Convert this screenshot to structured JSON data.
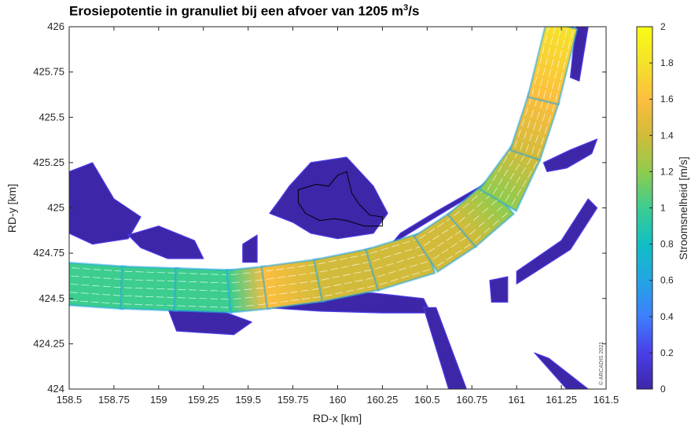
{
  "chart_data": {
    "type": "heatmap",
    "title": "Erosiepotentie in granuliet bij een afvoer van 1205 m",
    "title_sup": "3",
    "title_suffix": "/s",
    "xlabel": "RD-x [km]",
    "ylabel": "RD-y [km]",
    "xlim": [
      158.5,
      161.5
    ],
    "ylim": [
      424,
      426
    ],
    "xticks": [
      158.5,
      158.75,
      159,
      159.25,
      159.5,
      159.75,
      160,
      160.25,
      160.5,
      160.75,
      161,
      161.25,
      161.5
    ],
    "xticklabels": [
      "158.5",
      "158.75",
      "159",
      "159.25",
      "159.5",
      "159.75",
      "160",
      "160.25",
      "160.5",
      "160.75",
      "161",
      "161.25",
      "161.5"
    ],
    "yticks": [
      424,
      424.25,
      424.5,
      424.75,
      425,
      425.25,
      425.5,
      425.75,
      426
    ],
    "yticklabels": [
      "424",
      "424.25",
      "424.5",
      "424.75",
      "425",
      "425.25",
      "425.5",
      "425.75",
      "426"
    ],
    "colorbar": {
      "label": "Stroomsnelheid [m/s]",
      "range": [
        0,
        2
      ],
      "ticks": [
        0,
        0.2,
        0.4,
        0.6,
        0.8,
        1,
        1.2,
        1.4,
        1.6,
        1.8,
        2
      ],
      "ticklabels": [
        "0",
        "0.2",
        "0.4",
        "0.6",
        "0.8",
        "1",
        "1.2",
        "1.4",
        "1.6",
        "1.8",
        "2"
      ],
      "colors": [
        "#3e26a8",
        "#4a3ee8",
        "#3d7ffd",
        "#23a5e3",
        "#10bfc4",
        "#3ccd8f",
        "#8fcc4e",
        "#d2bb3a",
        "#fcbe3e",
        "#f5e22a",
        "#f9fb15"
      ]
    },
    "grid": false,
    "main_channel": [
      [
        158.5,
        424.58,
        0.95
      ],
      [
        158.8,
        424.56,
        1.0
      ],
      [
        159.1,
        424.55,
        1.0
      ],
      [
        159.4,
        424.54,
        1.05
      ],
      [
        159.6,
        424.56,
        1.55
      ],
      [
        159.9,
        424.6,
        1.45
      ],
      [
        160.2,
        424.66,
        1.4
      ],
      [
        160.5,
        424.75,
        1.35
      ],
      [
        160.7,
        424.88,
        1.3
      ],
      [
        160.9,
        425.05,
        1.2
      ],
      [
        161.05,
        425.3,
        1.35
      ],
      [
        161.15,
        425.6,
        1.6
      ],
      [
        161.25,
        426.0,
        1.85
      ]
    ],
    "slow_regions": [
      [
        [
          159.73,
          425.12
        ],
        [
          159.85,
          425.25
        ],
        [
          160.05,
          425.28
        ],
        [
          160.2,
          425.12
        ],
        [
          160.28,
          424.97
        ],
        [
          160.2,
          424.86
        ],
        [
          160.0,
          424.83
        ],
        [
          159.85,
          424.86
        ],
        [
          159.75,
          424.92
        ],
        [
          159.62,
          424.97
        ],
        [
          159.68,
          425.05
        ]
      ],
      [
        [
          158.5,
          425.2
        ],
        [
          158.63,
          425.25
        ],
        [
          158.75,
          425.05
        ],
        [
          158.9,
          424.95
        ],
        [
          158.83,
          424.83
        ],
        [
          158.63,
          424.8
        ],
        [
          158.5,
          424.86
        ]
      ],
      [
        [
          158.83,
          424.85
        ],
        [
          159.0,
          424.9
        ],
        [
          159.2,
          424.82
        ],
        [
          159.25,
          424.72
        ],
        [
          159.05,
          424.72
        ],
        [
          158.9,
          424.78
        ]
      ],
      [
        [
          159.05,
          424.45
        ],
        [
          159.3,
          424.45
        ],
        [
          159.52,
          424.37
        ],
        [
          159.42,
          424.3
        ],
        [
          159.1,
          424.32
        ]
      ],
      [
        [
          159.6,
          424.45
        ],
        [
          159.9,
          424.43
        ],
        [
          160.25,
          424.42
        ],
        [
          160.52,
          424.42
        ],
        [
          160.48,
          424.5
        ],
        [
          160.2,
          424.53
        ],
        [
          159.9,
          424.55
        ]
      ],
      [
        [
          160.48,
          424.45
        ],
        [
          160.55,
          424.45
        ],
        [
          160.72,
          424.0
        ],
        [
          160.62,
          424.0
        ]
      ],
      [
        [
          161.0,
          424.58
        ],
        [
          161.3,
          424.77
        ],
        [
          161.45,
          425.0
        ],
        [
          161.4,
          425.05
        ],
        [
          161.25,
          424.82
        ],
        [
          161.0,
          424.65
        ]
      ],
      [
        [
          160.85,
          424.6
        ],
        [
          160.95,
          424.62
        ],
        [
          160.95,
          424.48
        ],
        [
          160.86,
          424.48
        ]
      ],
      [
        [
          161.1,
          424.2
        ],
        [
          161.18,
          424.17
        ],
        [
          161.4,
          424.0
        ],
        [
          161.28,
          424.0
        ]
      ],
      [
        [
          161.22,
          426.0
        ],
        [
          161.32,
          426.0
        ],
        [
          161.23,
          425.6
        ],
        [
          161.13,
          425.3
        ],
        [
          161.05,
          425.22
        ],
        [
          161.12,
          425.45
        ],
        [
          161.2,
          425.75
        ]
      ],
      [
        [
          161.33,
          426.0
        ],
        [
          161.4,
          426.0
        ],
        [
          161.35,
          425.7
        ],
        [
          161.3,
          425.72
        ]
      ],
      [
        [
          160.3,
          424.8
        ],
        [
          160.55,
          424.95
        ],
        [
          160.8,
          425.1
        ],
        [
          160.92,
          425.22
        ],
        [
          160.8,
          425.12
        ],
        [
          160.55,
          424.98
        ],
        [
          160.35,
          424.86
        ]
      ],
      [
        [
          159.47,
          424.8
        ],
        [
          159.55,
          424.85
        ],
        [
          159.55,
          424.7
        ],
        [
          159.47,
          424.7
        ]
      ],
      [
        [
          161.15,
          425.25
        ],
        [
          161.3,
          425.32
        ],
        [
          161.45,
          425.38
        ],
        [
          161.42,
          425.3
        ],
        [
          161.28,
          425.22
        ],
        [
          161.17,
          425.2
        ]
      ]
    ],
    "outline": [
      [
        159.78,
        425.1
      ],
      [
        159.88,
        425.13
      ],
      [
        159.95,
        425.12
      ],
      [
        160.0,
        425.18
      ],
      [
        160.05,
        425.2
      ],
      [
        160.08,
        425.08
      ],
      [
        160.12,
        425.02
      ],
      [
        160.18,
        424.96
      ],
      [
        160.25,
        424.95
      ],
      [
        160.25,
        424.9
      ],
      [
        160.15,
        424.9
      ],
      [
        160.05,
        424.93
      ],
      [
        159.98,
        424.94
      ],
      [
        159.9,
        424.93
      ],
      [
        159.82,
        424.97
      ],
      [
        159.78,
        425.03
      ]
    ],
    "copyright": "© ARCADIS 2021"
  }
}
